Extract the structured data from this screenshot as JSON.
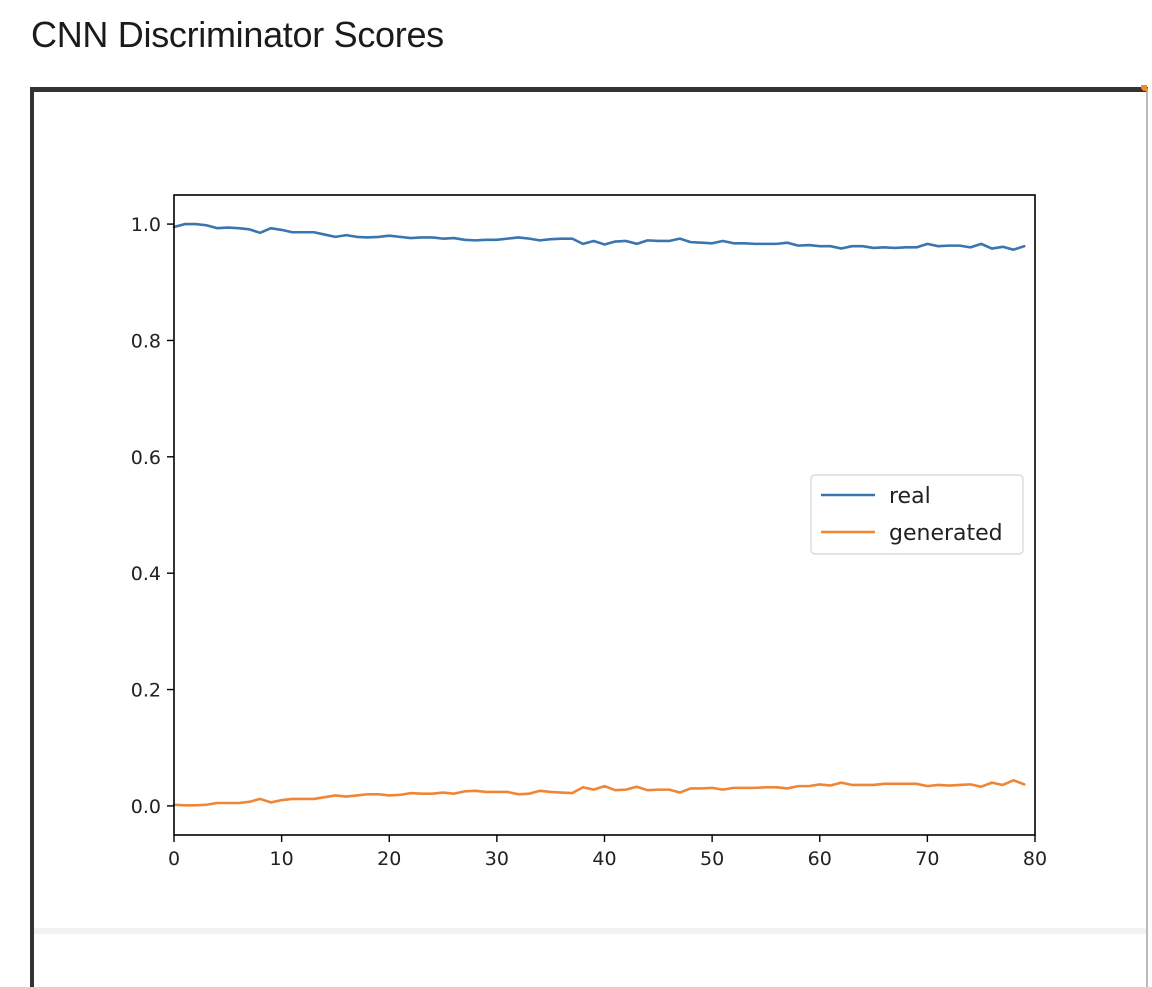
{
  "page": {
    "title": "CNN Discriminator Scores"
  },
  "chart_data": {
    "type": "line",
    "title": "",
    "xlabel": "",
    "ylabel": "",
    "xlim": [
      0,
      80
    ],
    "ylim": [
      -0.05,
      1.05
    ],
    "x_ticks": [
      0,
      10,
      20,
      30,
      40,
      50,
      60,
      70,
      80
    ],
    "x_tick_labels": [
      "0",
      "10",
      "20",
      "30",
      "40",
      "50",
      "60",
      "70",
      "80"
    ],
    "y_ticks": [
      0.0,
      0.2,
      0.4,
      0.6,
      0.8,
      1.0
    ],
    "y_tick_labels": [
      "0.0",
      "0.2",
      "0.4",
      "0.6",
      "0.8",
      "1.0"
    ],
    "grid": false,
    "legend_position": "center-right",
    "x": [
      0,
      1,
      2,
      3,
      4,
      5,
      6,
      7,
      8,
      9,
      10,
      11,
      12,
      13,
      14,
      15,
      16,
      17,
      18,
      19,
      20,
      21,
      22,
      23,
      24,
      25,
      26,
      27,
      28,
      29,
      30,
      31,
      32,
      33,
      34,
      35,
      36,
      37,
      38,
      39,
      40,
      41,
      42,
      43,
      44,
      45,
      46,
      47,
      48,
      49,
      50,
      51,
      52,
      53,
      54,
      55,
      56,
      57,
      58,
      59,
      60,
      61,
      62,
      63,
      64,
      65,
      66,
      67,
      68,
      69,
      70,
      71,
      72,
      73,
      74,
      75,
      76,
      77,
      78,
      79
    ],
    "series": [
      {
        "name": "real",
        "color": "#3b75af",
        "values": [
          0.995,
          1.0,
          1.0,
          0.998,
          0.993,
          0.994,
          0.993,
          0.991,
          0.985,
          0.993,
          0.99,
          0.986,
          0.986,
          0.986,
          0.982,
          0.978,
          0.981,
          0.978,
          0.977,
          0.978,
          0.98,
          0.978,
          0.976,
          0.977,
          0.977,
          0.975,
          0.976,
          0.973,
          0.972,
          0.973,
          0.973,
          0.975,
          0.977,
          0.975,
          0.972,
          0.974,
          0.975,
          0.975,
          0.966,
          0.971,
          0.965,
          0.97,
          0.971,
          0.966,
          0.972,
          0.971,
          0.971,
          0.975,
          0.969,
          0.968,
          0.967,
          0.971,
          0.967,
          0.967,
          0.966,
          0.966,
          0.966,
          0.968,
          0.963,
          0.964,
          0.962,
          0.962,
          0.958,
          0.962,
          0.962,
          0.959,
          0.96,
          0.959,
          0.96,
          0.96,
          0.966,
          0.962,
          0.963,
          0.963,
          0.96,
          0.966,
          0.958,
          0.961,
          0.956,
          0.962
        ]
      },
      {
        "name": "generated",
        "color": "#ef8636",
        "values": [
          0.002,
          0.001,
          0.001,
          0.002,
          0.005,
          0.005,
          0.005,
          0.007,
          0.012,
          0.006,
          0.01,
          0.012,
          0.012,
          0.012,
          0.015,
          0.018,
          0.016,
          0.018,
          0.02,
          0.02,
          0.018,
          0.019,
          0.022,
          0.021,
          0.021,
          0.023,
          0.021,
          0.025,
          0.026,
          0.024,
          0.024,
          0.024,
          0.02,
          0.021,
          0.026,
          0.024,
          0.023,
          0.022,
          0.032,
          0.028,
          0.034,
          0.027,
          0.028,
          0.033,
          0.027,
          0.028,
          0.028,
          0.023,
          0.03,
          0.03,
          0.031,
          0.028,
          0.031,
          0.031,
          0.031,
          0.032,
          0.032,
          0.03,
          0.034,
          0.034,
          0.037,
          0.035,
          0.04,
          0.036,
          0.036,
          0.036,
          0.038,
          0.038,
          0.038,
          0.038,
          0.034,
          0.036,
          0.035,
          0.036,
          0.037,
          0.033,
          0.04,
          0.036,
          0.044,
          0.037
        ]
      }
    ]
  }
}
